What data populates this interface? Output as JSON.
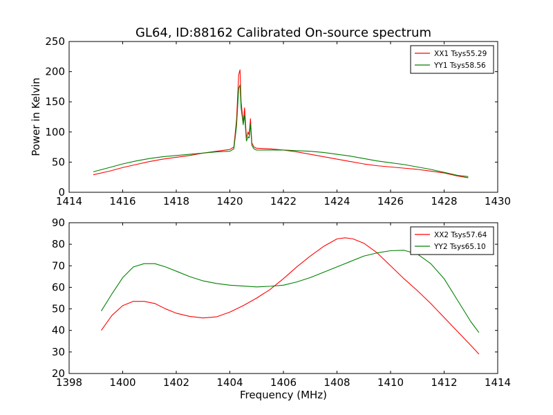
{
  "figure": {
    "title": "GL64, ID:88162 Calibrated On-source spectrum"
  },
  "chart_data": [
    {
      "type": "line",
      "title": "GL64, ID:88162 Calibrated On-source spectrum",
      "xlabel": "",
      "ylabel": "Power in Kelvin",
      "xlim": [
        1414,
        1430
      ],
      "ylim": [
        0,
        250
      ],
      "xticks": [
        1414,
        1416,
        1418,
        1420,
        1422,
        1424,
        1426,
        1428,
        1430
      ],
      "yticks": [
        0,
        50,
        100,
        150,
        200,
        250
      ],
      "grid": false,
      "legend_position": "top-right",
      "series": [
        {
          "name": "XX1 Tsys55.29",
          "color": "#ff0000",
          "x": [
            1414.9,
            1415.5,
            1416.0,
            1416.5,
            1417.0,
            1417.5,
            1418.0,
            1418.5,
            1419.0,
            1419.5,
            1420.0,
            1420.15,
            1420.25,
            1420.33,
            1420.38,
            1420.42,
            1420.5,
            1420.55,
            1420.62,
            1420.68,
            1420.72,
            1420.77,
            1420.82,
            1420.9,
            1421.0,
            1421.5,
            1422.0,
            1422.5,
            1423.0,
            1423.5,
            1424.0,
            1424.5,
            1425.0,
            1425.5,
            1426.0,
            1426.5,
            1427.0,
            1427.5,
            1428.0,
            1428.5,
            1428.9
          ],
          "y": [
            29,
            35,
            41,
            46,
            51,
            55,
            58,
            61,
            65,
            68,
            71,
            75,
            120,
            195,
            203,
            150,
            115,
            140,
            90,
            100,
            95,
            122,
            82,
            75,
            73,
            72,
            70,
            67,
            63,
            59,
            55,
            51,
            47,
            44,
            42,
            40,
            38,
            35,
            32,
            27,
            24
          ]
        },
        {
          "name": "YY1 Tsys58.56",
          "color": "#008000",
          "x": [
            1414.9,
            1415.5,
            1416.0,
            1416.5,
            1417.0,
            1417.5,
            1418.0,
            1418.5,
            1419.0,
            1419.5,
            1420.0,
            1420.15,
            1420.25,
            1420.33,
            1420.38,
            1420.42,
            1420.5,
            1420.55,
            1420.62,
            1420.68,
            1420.72,
            1420.77,
            1420.82,
            1420.9,
            1421.0,
            1421.5,
            1422.0,
            1422.5,
            1423.0,
            1423.5,
            1424.0,
            1424.5,
            1425.0,
            1425.5,
            1426.0,
            1426.5,
            1427.0,
            1427.5,
            1428.0,
            1428.5,
            1428.9
          ],
          "y": [
            34,
            41,
            47,
            52,
            56,
            59,
            61,
            63,
            65,
            67,
            68,
            72,
            110,
            172,
            178,
            140,
            112,
            128,
            85,
            92,
            90,
            113,
            78,
            72,
            70,
            70,
            70,
            69,
            68,
            66,
            63,
            60,
            56,
            52,
            49,
            46,
            42,
            38,
            33,
            28,
            26
          ]
        }
      ]
    },
    {
      "type": "line",
      "title": "",
      "xlabel": "Frequency (MHz)",
      "ylabel": "",
      "xlim": [
        1398,
        1414
      ],
      "ylim": [
        20,
        90
      ],
      "xticks": [
        1398,
        1400,
        1402,
        1404,
        1406,
        1408,
        1410,
        1412,
        1414
      ],
      "yticks": [
        20,
        30,
        40,
        50,
        60,
        70,
        80,
        90
      ],
      "grid": false,
      "legend_position": "top-right",
      "series": [
        {
          "name": "XX2 Tsys57.64",
          "color": "#ff0000",
          "x": [
            1399.2,
            1399.6,
            1400.0,
            1400.4,
            1400.8,
            1401.2,
            1401.6,
            1402.0,
            1402.5,
            1403.0,
            1403.5,
            1404.0,
            1404.5,
            1405.0,
            1405.5,
            1406.0,
            1406.5,
            1407.0,
            1407.5,
            1408.0,
            1408.3,
            1408.6,
            1409.0,
            1409.5,
            1410.0,
            1410.5,
            1411.0,
            1411.5,
            1412.0,
            1412.5,
            1413.0,
            1413.3
          ],
          "y": [
            40,
            47,
            51.5,
            53.5,
            53.5,
            52.5,
            50,
            48,
            46.5,
            45.8,
            46.3,
            48.5,
            51.5,
            55,
            59,
            64,
            69.5,
            74.5,
            79,
            82.5,
            83,
            82.5,
            80.5,
            76,
            70,
            64,
            58.5,
            52.5,
            46,
            39.5,
            33,
            29
          ]
        },
        {
          "name": "YY2 Tsys65.10",
          "color": "#008000",
          "x": [
            1399.2,
            1399.6,
            1400.0,
            1400.4,
            1400.8,
            1401.2,
            1401.6,
            1402.0,
            1402.5,
            1403.0,
            1403.5,
            1404.0,
            1404.5,
            1405.0,
            1405.5,
            1406.0,
            1406.5,
            1407.0,
            1407.5,
            1408.0,
            1408.5,
            1409.0,
            1409.5,
            1410.0,
            1410.5,
            1411.0,
            1411.5,
            1412.0,
            1412.5,
            1413.0,
            1413.3
          ],
          "y": [
            49,
            57,
            64.5,
            69.5,
            71,
            71,
            69.5,
            67.5,
            65,
            63,
            61.8,
            61,
            60.6,
            60.2,
            60.5,
            61,
            62.5,
            64.5,
            67,
            69.5,
            72,
            74.5,
            76,
            77,
            77.2,
            75.5,
            71,
            64,
            54,
            44,
            39
          ]
        }
      ]
    }
  ]
}
